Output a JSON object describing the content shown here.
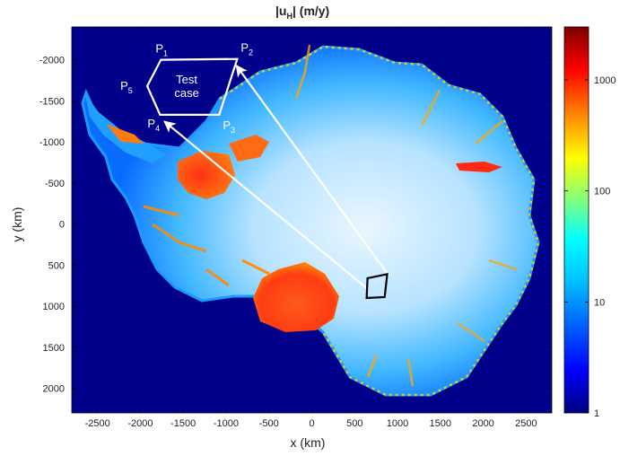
{
  "chart_data": {
    "type": "heatmap",
    "title_main": "|u",
    "title_sub": "H",
    "title_unit": "| (m/y)",
    "xlabel": "x (km)",
    "ylabel": "y (km)",
    "xlim": [
      -2800,
      2800
    ],
    "ylim": [
      2300,
      -2400
    ],
    "y_axis_direction": "reversed (negative at top)",
    "xticks": [
      -2500,
      -2000,
      -1500,
      -1000,
      -500,
      0,
      500,
      1000,
      1500,
      2000,
      2500
    ],
    "xtick_labels": [
      "-2500",
      "-2000",
      "-1500",
      "-1000",
      "-500",
      "0",
      "500",
      "1000",
      "1500",
      "2000",
      "2500"
    ],
    "yticks": [
      -2000,
      -1500,
      -1000,
      -500,
      0,
      500,
      1000,
      1500,
      2000
    ],
    "ytick_labels": [
      "-2000",
      "-1500",
      "-1000",
      "-500",
      "0",
      "500",
      "1000",
      "1500",
      "2000"
    ],
    "colorbar": {
      "scale": "log",
      "range": [
        1,
        3000
      ],
      "ticks": [
        1,
        10,
        100,
        1000
      ],
      "tick_labels": [
        "1",
        "10",
        "100",
        "1000"
      ],
      "colormap": "jet",
      "colors": [
        "#00007f",
        "#0000ff",
        "#007fff",
        "#00ffff",
        "#7fff7f",
        "#ffff00",
        "#ff7f00",
        "#ff0000",
        "#7f0000"
      ]
    },
    "background_color": "#00008b",
    "annotations": {
      "test_region": {
        "label_line1": "Test",
        "label_line2": "case",
        "points": [
          {
            "name": "P",
            "sub": "1",
            "x": -1760,
            "y": -2000
          },
          {
            "name": "P",
            "sub": "2",
            "x": -870,
            "y": -2010
          },
          {
            "name": "P",
            "sub": "3",
            "x": -1080,
            "y": -1330
          },
          {
            "name": "P",
            "sub": "4",
            "x": -1770,
            "y": -1330
          },
          {
            "name": "P",
            "sub": "5",
            "x": -1920,
            "y": -1680
          }
        ],
        "color": "#ffffff"
      },
      "source_region": {
        "points": [
          {
            "x": 650,
            "y": 660
          },
          {
            "x": 880,
            "y": 610
          },
          {
            "x": 850,
            "y": 890
          },
          {
            "x": 640,
            "y": 900
          }
        ],
        "color": "#000000"
      },
      "arrows": [
        {
          "from": [
            900,
            630
          ],
          "to": [
            -880,
            -1930
          ],
          "color": "#ffffff"
        },
        {
          "from": [
            640,
            780
          ],
          "to": [
            -1720,
            -1250
          ],
          "color": "#ffffff"
        }
      ]
    }
  }
}
